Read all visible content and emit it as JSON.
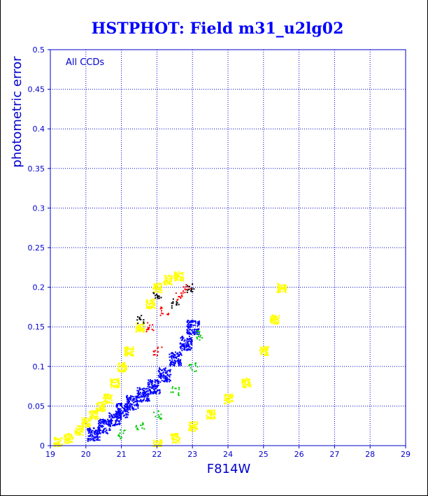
{
  "chart_data": {
    "type": "scatter",
    "title": "HSTPHOT: Field m31_u2lg02",
    "xlabel": "F814W",
    "ylabel": "photometric error",
    "annotation": "All CCDs",
    "xlim": [
      19,
      29
    ],
    "ylim": [
      0,
      0.5
    ],
    "x_ticks": [
      "19",
      "20",
      "21",
      "22",
      "23",
      "24",
      "25",
      "26",
      "27",
      "28",
      "29"
    ],
    "y_ticks": [
      "0",
      "0.05",
      "0.1",
      "0.15",
      "0.2",
      "0.25",
      "0.3",
      "0.35",
      "0.4",
      "0.45",
      "0.5"
    ],
    "grid": true,
    "colors": {
      "axes": "#0000cc",
      "title": "#0000ff",
      "grid": "#0000cc",
      "yellow": "#ffff00",
      "blue": "#0000ff",
      "green": "#00cc00",
      "red": "#ff0000",
      "black": "#000000"
    },
    "series": [
      {
        "color": "yellow",
        "points": [
          [
            19.2,
            0.005
          ],
          [
            19.5,
            0.01
          ],
          [
            19.8,
            0.02
          ],
          [
            20.0,
            0.03
          ],
          [
            20.2,
            0.04
          ],
          [
            20.4,
            0.05
          ],
          [
            20.6,
            0.06
          ],
          [
            20.8,
            0.08
          ],
          [
            21.0,
            0.1
          ],
          [
            21.2,
            0.12
          ],
          [
            21.5,
            0.15
          ],
          [
            21.8,
            0.18
          ],
          [
            22.0,
            0.2
          ],
          [
            22.3,
            0.21
          ],
          [
            22.6,
            0.215
          ],
          [
            22.0,
            0.002
          ],
          [
            22.5,
            0.01
          ],
          [
            23.0,
            0.025
          ],
          [
            23.5,
            0.04
          ],
          [
            24.0,
            0.06
          ],
          [
            24.5,
            0.08
          ],
          [
            25.0,
            0.12
          ],
          [
            25.3,
            0.16
          ],
          [
            25.5,
            0.2
          ]
        ]
      },
      {
        "color": "blue",
        "points": [
          [
            20.2,
            0.015
          ],
          [
            20.5,
            0.025
          ],
          [
            20.8,
            0.035
          ],
          [
            21.0,
            0.045
          ],
          [
            21.3,
            0.055
          ],
          [
            21.6,
            0.065
          ],
          [
            21.9,
            0.075
          ],
          [
            22.2,
            0.09
          ],
          [
            22.5,
            0.11
          ],
          [
            22.8,
            0.13
          ],
          [
            23.0,
            0.15
          ]
        ]
      },
      {
        "color": "green",
        "points": [
          [
            21.0,
            0.015
          ],
          [
            21.5,
            0.025
          ],
          [
            22.0,
            0.04
          ],
          [
            22.5,
            0.07
          ],
          [
            23.0,
            0.1
          ],
          [
            23.2,
            0.14
          ]
        ]
      },
      {
        "color": "red",
        "points": [
          [
            21.8,
            0.15
          ],
          [
            22.2,
            0.17
          ],
          [
            22.6,
            0.19
          ],
          [
            22.0,
            0.12
          ],
          [
            22.8,
            0.2
          ]
        ]
      },
      {
        "color": "black",
        "points": [
          [
            21.5,
            0.16
          ],
          [
            22.0,
            0.19
          ],
          [
            22.5,
            0.18
          ],
          [
            22.9,
            0.2
          ]
        ]
      }
    ]
  }
}
